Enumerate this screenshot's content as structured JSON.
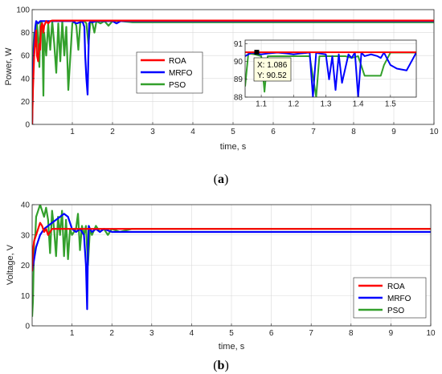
{
  "colors": {
    "ROA": "#ff0000",
    "MRFO": "#0000ff",
    "PSO": "#33a02c"
  },
  "chart_data": [
    {
      "panel": "a",
      "type": "line",
      "caption_letter": "a",
      "xlabel": "time, s",
      "ylabel": "Power, W",
      "xlim": [
        0,
        10
      ],
      "ylim": [
        0,
        100
      ],
      "xticks": [
        1,
        2,
        3,
        4,
        5,
        6,
        7,
        8,
        9,
        10
      ],
      "yticks": [
        0,
        20,
        40,
        60,
        80,
        100
      ],
      "grid": true,
      "legend_position": "center",
      "legend": [
        "ROA",
        "MRFO",
        "PSO"
      ],
      "series": [
        {
          "name": "ROA",
          "x": [
            0,
            0.02,
            0.05,
            0.08,
            0.1,
            0.12,
            0.15,
            0.18,
            0.2,
            0.22,
            0.25,
            0.28,
            0.3,
            0.35,
            0.4,
            0.45,
            0.5,
            0.6,
            1,
            2,
            3,
            4,
            5,
            6,
            7,
            8,
            9,
            10
          ],
          "y": [
            0,
            30,
            60,
            75,
            82,
            60,
            55,
            70,
            65,
            85,
            88,
            80,
            86,
            90,
            88,
            90,
            90.5,
            90.5,
            90.5,
            90.5,
            90.5,
            90.5,
            90.5,
            90.5,
            90.5,
            90.5,
            90.5,
            90.5
          ]
        },
        {
          "name": "MRFO",
          "x": [
            0,
            0.02,
            0.05,
            0.08,
            0.1,
            0.15,
            0.2,
            0.25,
            0.3,
            0.4,
            0.5,
            0.6,
            0.8,
            1.0,
            1.1,
            1.2,
            1.25,
            1.3,
            1.32,
            1.35,
            1.38,
            1.4,
            1.42,
            1.45,
            1.5,
            1.6,
            1.8,
            2.0,
            2.1,
            2.2,
            3,
            4,
            5,
            6,
            7,
            8,
            9,
            10
          ],
          "y": [
            0,
            40,
            70,
            85,
            90,
            88,
            90,
            90,
            90,
            90,
            90,
            90,
            90,
            90,
            88,
            89,
            90,
            85,
            60,
            40,
            26,
            60,
            88,
            90,
            89,
            90,
            90,
            90,
            88,
            90,
            90,
            90,
            90,
            90,
            90,
            90,
            90,
            90
          ]
        },
        {
          "name": "PSO",
          "x": [
            0,
            0.02,
            0.05,
            0.08,
            0.1,
            0.12,
            0.15,
            0.18,
            0.2,
            0.22,
            0.25,
            0.28,
            0.3,
            0.35,
            0.4,
            0.45,
            0.5,
            0.55,
            0.6,
            0.65,
            0.7,
            0.75,
            0.8,
            0.85,
            0.9,
            1.0,
            1.05,
            1.1,
            1.15,
            1.2,
            1.25,
            1.3,
            1.35,
            1.4,
            1.45,
            1.5,
            1.55,
            1.6,
            1.7,
            1.8,
            1.9,
            2.0,
            2.2,
            2.5,
            3,
            4,
            5,
            6,
            7,
            8,
            9,
            10
          ],
          "y": [
            0,
            55,
            80,
            72,
            68,
            88,
            75,
            50,
            85,
            90,
            88,
            25,
            80,
            60,
            88,
            65,
            90,
            70,
            45,
            88,
            55,
            90,
            60,
            85,
            30,
            88,
            90,
            86,
            65,
            90,
            89,
            90,
            88,
            70,
            90,
            88,
            80,
            90,
            88,
            90,
            86,
            90,
            90,
            89,
            89,
            89,
            89,
            89,
            89,
            89,
            89,
            89
          ]
        }
      ]
    },
    {
      "panel": "a-inset",
      "type": "line",
      "xlim": [
        1.05,
        1.58
      ],
      "ylim": [
        88,
        91.2
      ],
      "xticks": [
        1.1,
        1.2,
        1.3,
        1.4,
        1.5
      ],
      "yticks": [
        88,
        89,
        90,
        91
      ],
      "datatip": {
        "x": 1.086,
        "y": 90.52,
        "x_label": "X: 1.086",
        "y_label": "Y: 90.52"
      },
      "series": [
        {
          "name": "ROA",
          "x": [
            1.05,
            1.58
          ],
          "y": [
            90.52,
            90.52
          ]
        },
        {
          "name": "MRFO",
          "x": [
            1.05,
            1.06,
            1.07,
            1.08,
            1.1,
            1.12,
            1.15,
            1.18,
            1.2,
            1.22,
            1.25,
            1.26,
            1.27,
            1.28,
            1.3,
            1.31,
            1.32,
            1.33,
            1.34,
            1.35,
            1.37,
            1.38,
            1.39,
            1.4,
            1.41,
            1.42,
            1.44,
            1.46,
            1.47,
            1.48,
            1.5,
            1.52,
            1.55,
            1.58
          ],
          "y": [
            90.3,
            90.4,
            90.5,
            90.45,
            90.4,
            90.45,
            90.5,
            90.45,
            90.4,
            90.45,
            90.5,
            88,
            90.5,
            90.45,
            90.4,
            89,
            90.3,
            88.4,
            90.4,
            88.8,
            90.4,
            90.2,
            90.5,
            88,
            90.5,
            90.3,
            90.4,
            90.3,
            90.2,
            90.5,
            89.8,
            89.6,
            89.5,
            90.5
          ]
        },
        {
          "name": "PSO",
          "x": [
            1.05,
            1.06,
            1.08,
            1.1,
            1.11,
            1.12,
            1.14,
            1.16,
            1.18,
            1.2,
            1.22,
            1.25,
            1.27,
            1.28,
            1.3,
            1.33,
            1.36,
            1.38,
            1.4,
            1.42,
            1.45,
            1.47,
            1.48,
            1.5,
            1.52,
            1.55,
            1.58
          ],
          "y": [
            88.6,
            90.45,
            90.4,
            90.3,
            88.3,
            90.3,
            90.3,
            90.3,
            90.3,
            90.3,
            90.3,
            90.3,
            88,
            90.3,
            90.3,
            90.3,
            90.3,
            90.2,
            90.3,
            89.2,
            89.2,
            89.2,
            89.8,
            90.5,
            90.5,
            90.5,
            90.5
          ]
        }
      ]
    },
    {
      "panel": "b",
      "type": "line",
      "caption_letter": "b",
      "xlabel": "time, s",
      "ylabel": "Voltage, V",
      "xlim": [
        0,
        10
      ],
      "ylim": [
        0,
        40
      ],
      "xticks": [
        1,
        2,
        3,
        4,
        5,
        6,
        7,
        8,
        9,
        10
      ],
      "yticks": [
        0,
        10,
        20,
        30,
        40
      ],
      "grid": true,
      "legend_position": "bottom-right",
      "legend": [
        "ROA",
        "MRFO",
        "PSO"
      ],
      "series": [
        {
          "name": "ROA",
          "x": [
            0,
            0.02,
            0.05,
            0.1,
            0.15,
            0.2,
            0.25,
            0.3,
            0.35,
            0.4,
            0.45,
            0.5,
            0.6,
            0.7,
            0.8,
            1.0,
            2,
            3,
            4,
            5,
            6,
            7,
            8,
            9,
            10
          ],
          "y": [
            18,
            25,
            28,
            30,
            32,
            34,
            33,
            31,
            32,
            30,
            31,
            32,
            32,
            32,
            32,
            32,
            32,
            32,
            32,
            32,
            32,
            32,
            32,
            32,
            32
          ]
        },
        {
          "name": "MRFO",
          "x": [
            0,
            0.05,
            0.1,
            0.15,
            0.2,
            0.3,
            0.4,
            0.5,
            0.6,
            0.7,
            0.8,
            0.9,
            1.0,
            1.1,
            1.2,
            1.3,
            1.35,
            1.38,
            1.4,
            1.42,
            1.45,
            1.5,
            1.6,
            1.7,
            1.8,
            2.0,
            2.2,
            2.5,
            3,
            4,
            5,
            6,
            7,
            8,
            9,
            10
          ],
          "y": [
            18,
            22,
            26,
            28,
            30,
            32,
            33,
            34,
            35,
            36,
            37,
            36,
            32,
            31,
            32,
            30,
            20,
            5.5,
            25,
            33,
            32,
            31,
            32,
            31,
            32,
            31,
            31,
            31,
            31,
            31,
            31,
            31,
            31,
            31,
            31,
            31
          ]
        },
        {
          "name": "PSO",
          "x": [
            0,
            0.02,
            0.05,
            0.08,
            0.1,
            0.15,
            0.2,
            0.25,
            0.3,
            0.35,
            0.4,
            0.45,
            0.5,
            0.55,
            0.6,
            0.65,
            0.7,
            0.75,
            0.8,
            0.85,
            0.9,
            0.95,
            1.0,
            1.1,
            1.15,
            1.2,
            1.25,
            1.3,
            1.35,
            1.4,
            1.45,
            1.5,
            1.6,
            1.7,
            1.8,
            1.9,
            2.0,
            2.2,
            2.5,
            3,
            4,
            5,
            6,
            7,
            8,
            9,
            10
          ],
          "y": [
            3,
            8,
            28,
            30,
            36,
            38,
            40,
            38,
            36,
            39,
            35,
            24,
            38,
            32,
            23,
            36,
            30,
            38,
            23,
            35,
            22,
            32,
            30,
            32,
            37,
            25,
            33,
            30,
            33,
            20,
            32,
            30,
            33,
            31,
            32,
            30,
            32,
            31,
            32,
            32,
            32,
            32,
            32,
            32,
            32,
            32,
            32
          ]
        }
      ]
    }
  ]
}
